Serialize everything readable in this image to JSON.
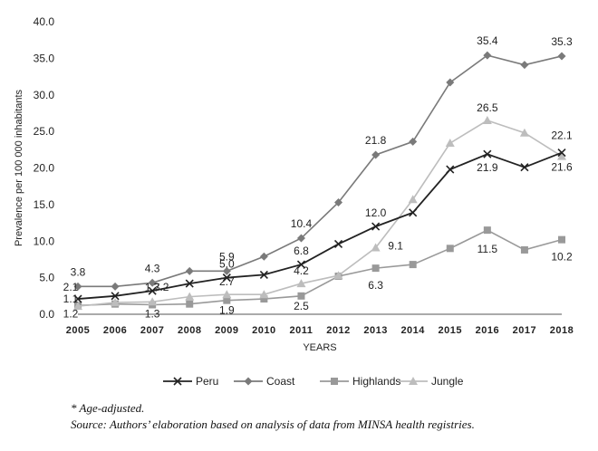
{
  "chart_data": {
    "type": "line",
    "title": "",
    "xlabel": "YEARS",
    "ylabel": "Prevalence per 100 000 inhabitants",
    "ylim": [
      0,
      40
    ],
    "yticks": [
      "0.0",
      "5.0",
      "10.0",
      "15.0",
      "20.0",
      "25.0",
      "30.0",
      "35.0",
      "40.0"
    ],
    "x": [
      "2005",
      "2006",
      "2007",
      "2008",
      "2009",
      "2010",
      "2011",
      "2012",
      "2013",
      "2014",
      "2015",
      "2016",
      "2017",
      "2018"
    ],
    "grid": false,
    "legend": "bottom",
    "series": [
      {
        "name": "Peru",
        "color": "#222222",
        "marker": "x",
        "values": [
          2.1,
          2.5,
          3.2,
          4.2,
          5.0,
          5.4,
          6.8,
          9.6,
          12.0,
          13.9,
          19.8,
          21.9,
          20.1,
          22.1
        ]
      },
      {
        "name": "Coast",
        "color": "#7a7a7a",
        "marker": "diamond",
        "values": [
          3.8,
          3.8,
          4.3,
          5.9,
          5.9,
          7.9,
          10.4,
          15.3,
          21.8,
          23.6,
          31.7,
          35.4,
          34.1,
          35.3
        ]
      },
      {
        "name": "Highlands",
        "color": "#999999",
        "marker": "square",
        "values": [
          1.2,
          1.4,
          1.3,
          1.4,
          1.9,
          2.1,
          2.5,
          5.2,
          6.3,
          6.8,
          9.0,
          11.5,
          8.8,
          10.2
        ]
      },
      {
        "name": "Jungle",
        "color": "#bdbdbd",
        "marker": "triangle",
        "values": [
          1.1,
          1.6,
          1.7,
          2.4,
          2.7,
          2.7,
          4.2,
          5.3,
          9.1,
          15.7,
          23.4,
          26.5,
          24.8,
          21.6
        ]
      }
    ],
    "data_labels": [
      {
        "series": 0,
        "index": 0,
        "text": "2.1"
      },
      {
        "series": 0,
        "index": 4,
        "text": "5.0"
      },
      {
        "series": 0,
        "index": 6,
        "text": "6.8"
      },
      {
        "series": 0,
        "index": 8,
        "text": "12.0"
      },
      {
        "series": 0,
        "index": 11,
        "text": "21.9"
      },
      {
        "series": 0,
        "index": 13,
        "text": "22.1"
      },
      {
        "series": 1,
        "index": 0,
        "text": "3.8"
      },
      {
        "series": 1,
        "index": 2,
        "text": "4.3"
      },
      {
        "series": 1,
        "index": 4,
        "text": "5.9"
      },
      {
        "series": 1,
        "index": 6,
        "text": "10.4"
      },
      {
        "series": 1,
        "index": 8,
        "text": "21.8"
      },
      {
        "series": 1,
        "index": 11,
        "text": "35.4"
      },
      {
        "series": 1,
        "index": 13,
        "text": "35.3"
      },
      {
        "series": 2,
        "index": 0,
        "text": "1.2"
      },
      {
        "series": 2,
        "index": 2,
        "text": "1.3"
      },
      {
        "series": 2,
        "index": 4,
        "text": "1.9"
      },
      {
        "series": 2,
        "index": 6,
        "text": "2.5"
      },
      {
        "series": 2,
        "index": 8,
        "text": "6.3"
      },
      {
        "series": 2,
        "index": 11,
        "text": "11.5"
      },
      {
        "series": 2,
        "index": 13,
        "text": "10.2"
      },
      {
        "series": 3,
        "index": 0,
        "text": "1.1"
      },
      {
        "series": 3,
        "index": 2,
        "text": "1.7"
      },
      {
        "series": 3,
        "index": 4,
        "text": "2.7"
      },
      {
        "series": 3,
        "index": 6,
        "text": "4.2"
      },
      {
        "series": 3,
        "index": 8,
        "text": "9.1"
      },
      {
        "series": 3,
        "index": 11,
        "text": "26.5"
      },
      {
        "series": 3,
        "index": 13,
        "text": "21.6"
      },
      {
        "series": 0,
        "index": 2,
        "text": "3.2"
      }
    ]
  },
  "notes": {
    "line1": "* Age-adjusted.",
    "line2": "Source: Authors’ elaboration based on analysis of data from MINSA health registries."
  }
}
